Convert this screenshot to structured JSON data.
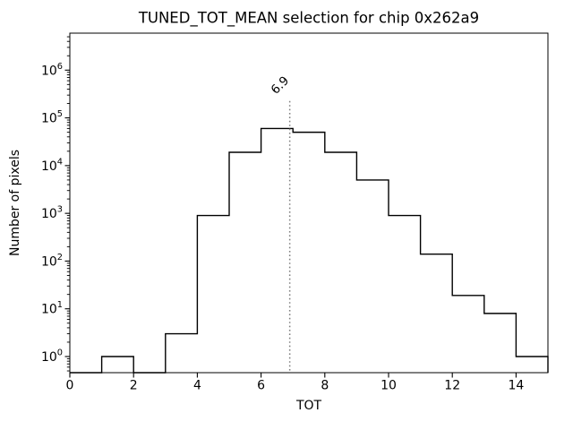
{
  "window": {
    "background": "#ffffff"
  },
  "chart_data": {
    "type": "bar",
    "subtype": "step-histogram",
    "title": "TUNED_TOT_MEAN selection for chip 0x262a9",
    "xlabel": "TOT",
    "ylabel": "Number of pixels",
    "yscale": "log",
    "xlim": [
      0,
      15
    ],
    "ylim_log10": [
      -0.338,
      6.775
    ],
    "bin_edges": [
      0,
      1,
      2,
      3,
      4,
      5,
      6,
      7,
      8,
      9,
      10,
      11,
      12,
      13,
      14,
      15
    ],
    "counts": [
      0,
      1,
      0,
      3,
      900,
      19000,
      60000,
      50000,
      19000,
      5000,
      900,
      140,
      19,
      8,
      1
    ],
    "x_tick_values": [
      0,
      2,
      4,
      6,
      8,
      10,
      12,
      14
    ],
    "y_tick_exponents": [
      0,
      1,
      2,
      3,
      4,
      5,
      6
    ],
    "grid": false,
    "legend": null,
    "line_color": "#000000",
    "tick_color": "#000000",
    "vline": {
      "x": 6.9,
      "label": "6.9",
      "color": "#7f7f7f",
      "style": "dotted",
      "ymax_axes_fraction": 0.8,
      "label_rotation_deg": -45
    }
  }
}
